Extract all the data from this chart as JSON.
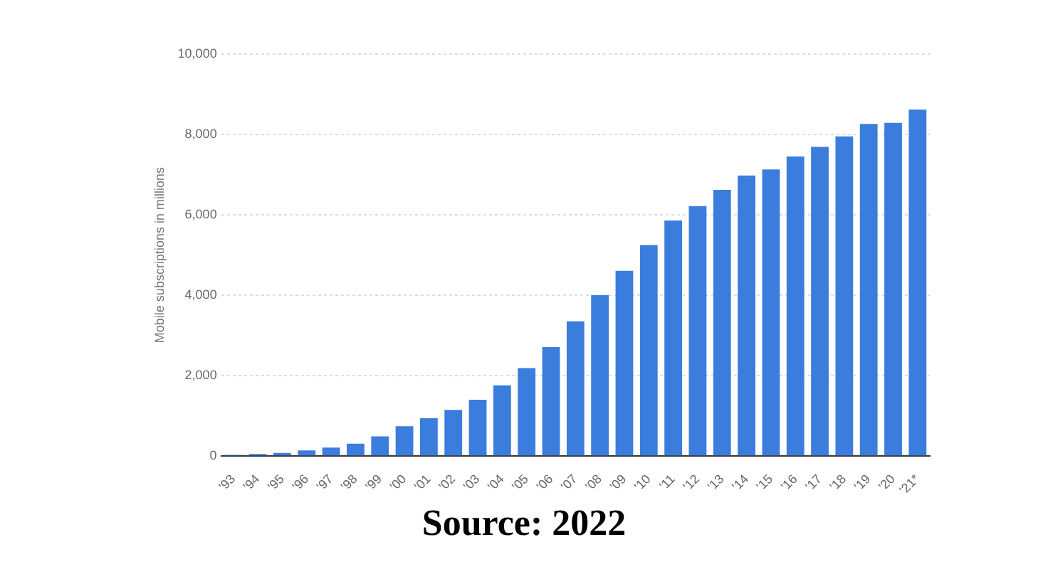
{
  "chart_data": {
    "type": "bar",
    "ylabel": "Mobile subscriptions in millions",
    "categories": [
      "'93",
      "'94",
      "'95",
      "'96",
      "'97",
      "'98",
      "'99",
      "'00",
      "'01",
      "'02",
      "'03",
      "'04",
      "'05",
      "'06",
      "'07",
      "'08",
      "'09",
      "'10",
      "'11",
      "'12",
      "'13",
      "'14",
      "'15",
      "'16",
      "'17",
      "'18",
      "'19",
      "'20",
      "'21*"
    ],
    "values": [
      30,
      50,
      80,
      140,
      210,
      310,
      490,
      740,
      940,
      1150,
      1400,
      1760,
      2190,
      2710,
      3350,
      4000,
      4610,
      5250,
      5860,
      6220,
      6620,
      6980,
      7130,
      7450,
      7690,
      7950,
      8260,
      8290,
      8620
    ],
    "color": "#3a7ddc",
    "ylim": [
      0,
      10000
    ],
    "yticks": [
      {
        "value": 0,
        "label": "0"
      },
      {
        "value": 2000,
        "label": "2,000"
      },
      {
        "value": 4000,
        "label": "4,000"
      },
      {
        "value": 6000,
        "label": "6,000"
      },
      {
        "value": 8000,
        "label": "8,000"
      },
      {
        "value": 10000,
        "label": "10,000"
      }
    ],
    "grid": "y",
    "annotations": [
      "Source: 2022"
    ]
  }
}
